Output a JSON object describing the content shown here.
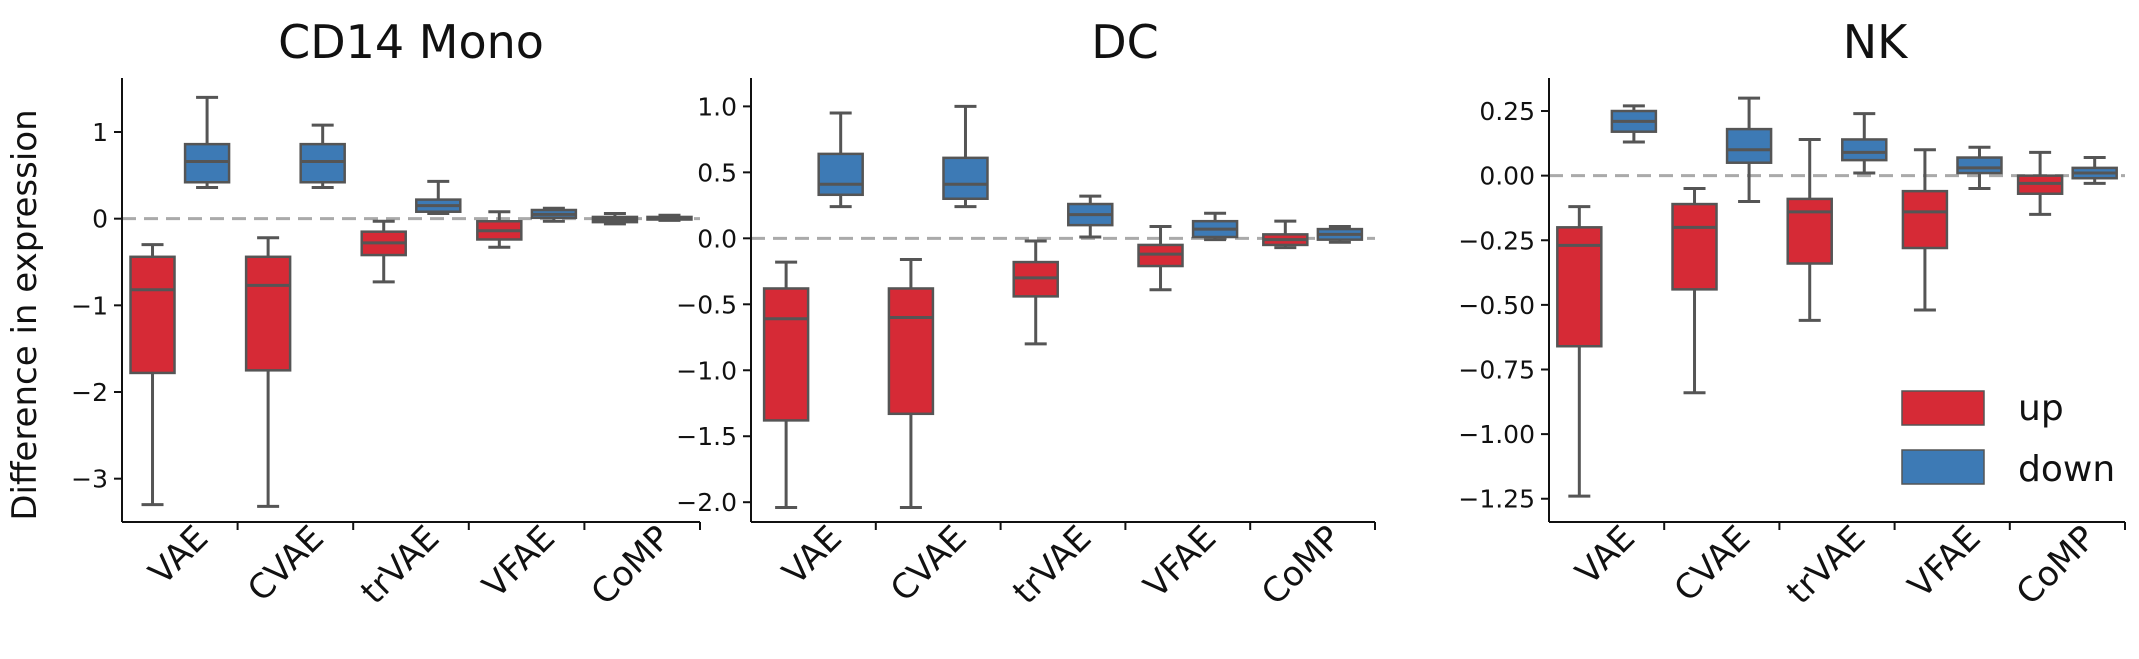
{
  "colors": {
    "up": "#d62a36",
    "down": "#3d7ab5",
    "edge": "#555555",
    "zero_line": "#aaaaaa"
  },
  "chart_data": [
    {
      "type": "box",
      "title": "CD14 Mono",
      "ylabel": "Difference in expression",
      "xlabel": "",
      "ylim": [
        -3.5,
        1.6
      ],
      "yticks": [
        1,
        0,
        -1,
        -2,
        -3
      ],
      "categories": [
        "VAE",
        "CVAE",
        "trVAE",
        "VFAE",
        "CoMP"
      ],
      "zero_line": true,
      "series": [
        {
          "name": "up",
          "boxes": [
            {
              "min": -3.3,
              "q1": -1.78,
              "median": -0.82,
              "q3": -0.44,
              "max": -0.3
            },
            {
              "min": -3.32,
              "q1": -1.75,
              "median": -0.77,
              "q3": -0.44,
              "max": -0.22
            },
            {
              "min": -0.73,
              "q1": -0.42,
              "median": -0.28,
              "q3": -0.15,
              "max": -0.03
            },
            {
              "min": -0.33,
              "q1": -0.24,
              "median": -0.14,
              "q3": -0.03,
              "max": 0.08
            },
            {
              "min": -0.06,
              "q1": -0.04,
              "median": -0.01,
              "q3": 0.02,
              "max": 0.06
            }
          ]
        },
        {
          "name": "down",
          "boxes": [
            {
              "min": 0.36,
              "q1": 0.42,
              "median": 0.66,
              "q3": 0.86,
              "max": 1.4
            },
            {
              "min": 0.36,
              "q1": 0.42,
              "median": 0.66,
              "q3": 0.86,
              "max": 1.08
            },
            {
              "min": 0.06,
              "q1": 0.08,
              "median": 0.15,
              "q3": 0.22,
              "max": 0.43
            },
            {
              "min": -0.03,
              "q1": 0.01,
              "median": 0.05,
              "q3": 0.1,
              "max": 0.12
            },
            {
              "min": -0.02,
              "q1": -0.01,
              "median": 0.0,
              "q3": 0.02,
              "max": 0.04
            }
          ]
        }
      ]
    },
    {
      "type": "box",
      "title": "DC",
      "ylabel": "",
      "xlabel": "",
      "ylim": [
        -2.15,
        1.2
      ],
      "yticks": [
        1.0,
        0.5,
        0.0,
        -0.5,
        -1.0,
        -1.5,
        -2.0
      ],
      "yticklabels": [
        "1.0",
        "0.5",
        "0.0",
        "−0.5",
        "−1.0",
        "−1.5",
        "−2.0"
      ],
      "categories": [
        "VAE",
        "CVAE",
        "trVAE",
        "VFAE",
        "CoMP"
      ],
      "zero_line": true,
      "series": [
        {
          "name": "up",
          "boxes": [
            {
              "min": -2.04,
              "q1": -1.38,
              "median": -0.61,
              "q3": -0.38,
              "max": -0.18
            },
            {
              "min": -2.04,
              "q1": -1.33,
              "median": -0.6,
              "q3": -0.38,
              "max": -0.16
            },
            {
              "min": -0.8,
              "q1": -0.44,
              "median": -0.3,
              "q3": -0.18,
              "max": -0.02
            },
            {
              "min": -0.39,
              "q1": -0.21,
              "median": -0.12,
              "q3": -0.05,
              "max": 0.09
            },
            {
              "min": -0.07,
              "q1": -0.05,
              "median": -0.01,
              "q3": 0.03,
              "max": 0.13
            }
          ]
        },
        {
          "name": "down",
          "boxes": [
            {
              "min": 0.24,
              "q1": 0.33,
              "median": 0.41,
              "q3": 0.64,
              "max": 0.95
            },
            {
              "min": 0.24,
              "q1": 0.3,
              "median": 0.41,
              "q3": 0.61,
              "max": 1.0
            },
            {
              "min": 0.01,
              "q1": 0.1,
              "median": 0.18,
              "q3": 0.26,
              "max": 0.32
            },
            {
              "min": -0.01,
              "q1": 0.01,
              "median": 0.07,
              "q3": 0.13,
              "max": 0.19
            },
            {
              "min": -0.03,
              "q1": -0.01,
              "median": 0.03,
              "q3": 0.07,
              "max": 0.09
            }
          ]
        }
      ]
    },
    {
      "type": "box",
      "title": "NK",
      "ylabel": "",
      "xlabel": "",
      "ylim": [
        -1.34,
        0.37
      ],
      "yticks": [
        0.25,
        0.0,
        -0.25,
        -0.5,
        -0.75,
        -1.0,
        -1.25
      ],
      "yticklabels": [
        "0.25",
        "0.00",
        "−0.25",
        "−0.50",
        "−0.75",
        "−1.00",
        "−1.25"
      ],
      "categories": [
        "VAE",
        "CVAE",
        "trVAE",
        "VFAE",
        "CoMP"
      ],
      "zero_line": true,
      "legend": {
        "entries": [
          "up",
          "down"
        ],
        "placement": "lower-right"
      },
      "series": [
        {
          "name": "up",
          "boxes": [
            {
              "min": -1.24,
              "q1": -0.66,
              "median": -0.27,
              "q3": -0.2,
              "max": -0.12
            },
            {
              "min": -0.84,
              "q1": -0.44,
              "median": -0.2,
              "q3": -0.11,
              "max": -0.05
            },
            {
              "min": -0.56,
              "q1": -0.34,
              "median": -0.14,
              "q3": -0.09,
              "max": 0.14
            },
            {
              "min": -0.52,
              "q1": -0.28,
              "median": -0.14,
              "q3": -0.06,
              "max": 0.1
            },
            {
              "min": -0.15,
              "q1": -0.07,
              "median": -0.03,
              "q3": 0.0,
              "max": 0.09
            }
          ]
        },
        {
          "name": "down",
          "boxes": [
            {
              "min": 0.13,
              "q1": 0.17,
              "median": 0.21,
              "q3": 0.25,
              "max": 0.27
            },
            {
              "min": -0.1,
              "q1": 0.05,
              "median": 0.1,
              "q3": 0.18,
              "max": 0.3
            },
            {
              "min": 0.01,
              "q1": 0.06,
              "median": 0.09,
              "q3": 0.14,
              "max": 0.24
            },
            {
              "min": -0.05,
              "q1": 0.01,
              "median": 0.03,
              "q3": 0.07,
              "max": 0.11
            },
            {
              "min": -0.03,
              "q1": -0.01,
              "median": 0.01,
              "q3": 0.03,
              "max": 0.07
            }
          ]
        }
      ]
    }
  ]
}
